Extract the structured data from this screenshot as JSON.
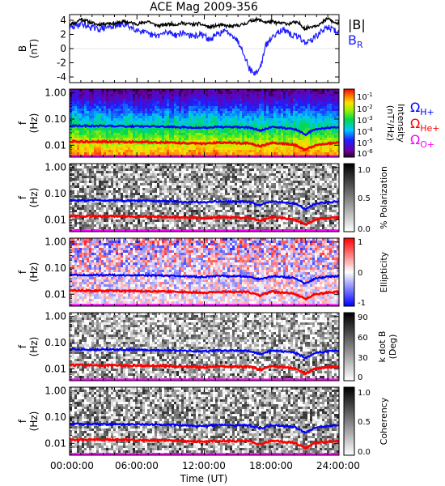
{
  "title": "ACE Mag 2009-356",
  "colors": {
    "total_field": "#000000",
    "radial_field": "#1a1aff",
    "h_plus": "#0000ff",
    "he_plus": "#ff0000",
    "o_plus": "#ff00ff"
  },
  "x_axis": {
    "label": "Time (UT)",
    "ticks": [
      "00:00:00",
      "06:00:00",
      "12:00:00",
      "18:00:00",
      "24:00:00"
    ],
    "tick_hours": [
      0,
      6,
      12,
      18,
      24
    ],
    "range_hours": [
      0,
      24
    ]
  },
  "field_panel": {
    "ylabel": "B",
    "yunit": "(nT)",
    "ylim": [
      -4.8,
      4.8
    ],
    "yticks": [
      "4",
      "2",
      "0",
      "-2",
      "-4"
    ],
    "ytick_values": [
      4,
      2,
      0,
      -2,
      -4
    ],
    "legend": {
      "total": "|B|",
      "radial_main": "B",
      "radial_sub": "R"
    }
  },
  "spectral_panels": {
    "ylabel": "f",
    "yunit": "(Hz)",
    "ylim": [
      0.0035,
      1.4
    ],
    "yticks": [
      "1.00",
      "0.10",
      "0.01"
    ],
    "ytick_values": [
      1.0,
      0.1,
      0.01
    ],
    "scale": "log"
  },
  "gyro_legend": [
    {
      "main": "Ω",
      "sub": "H+",
      "color": "#0000ff"
    },
    {
      "main": "Ω",
      "sub": "He+",
      "color": "#ff0000"
    },
    {
      "main": "Ω",
      "sub": "O+",
      "color": "#ff00ff"
    }
  ],
  "colorbars": {
    "intensity": {
      "label_main": "Intensity",
      "label_unit": "(nT²/Hz)",
      "ticks": [
        {
          "base": "10",
          "exp": "-1"
        },
        {
          "base": "10",
          "exp": "-2"
        },
        {
          "base": "10",
          "exp": "-3"
        },
        {
          "base": "10",
          "exp": "-4"
        },
        {
          "base": "10",
          "exp": "-5"
        },
        {
          "base": "10",
          "exp": "-6"
        }
      ]
    },
    "polarization": {
      "label": "% Polarization",
      "ticks": [
        "1.0",
        "0.5",
        "0.0"
      ]
    },
    "ellipticity": {
      "label": "Ellipticity",
      "ticks": [
        "1",
        "0",
        "-1"
      ]
    },
    "kdotb": {
      "label_main": "k dot B",
      "label_unit": "(Deg)",
      "ticks": [
        "90",
        "60",
        "30",
        "0"
      ]
    },
    "coherency": {
      "label": "Coherency",
      "ticks": [
        "1.0",
        "0.5",
        "0.0"
      ]
    }
  },
  "chart_data": [
    {
      "type": "line",
      "title": "ACE Mag 2009-356",
      "xlabel": "Time (UT)",
      "ylabel": "B (nT)",
      "x_unit": "hours UT",
      "xlim": [
        0,
        24
      ],
      "ylim": [
        -4.8,
        4.8
      ],
      "series": [
        {
          "name": "|B|",
          "x": [
            0,
            0.5,
            1,
            1.5,
            2,
            2.5,
            3,
            3.5,
            4,
            4.5,
            5,
            5.5,
            6,
            6.5,
            7,
            7.5,
            8,
            8.5,
            9,
            9.5,
            10,
            10.5,
            11,
            11.5,
            12,
            12.5,
            13,
            13.5,
            14,
            14.5,
            15,
            15.5,
            16,
            16.5,
            17,
            17.5,
            18,
            18.5,
            19,
            19.5,
            20,
            20.5,
            21,
            21.5,
            22,
            22.5,
            23,
            23.5,
            24
          ],
          "y": [
            3.5,
            3.6,
            4.2,
            3.9,
            3.6,
            3.4,
            3.5,
            3.6,
            3.5,
            3.7,
            3.8,
            3.6,
            3.5,
            3.6,
            3.9,
            3.4,
            3.2,
            3.4,
            3.5,
            3.4,
            3.6,
            3.5,
            3.4,
            3.5,
            3.3,
            3.0,
            3.2,
            3.3,
            3.2,
            3.1,
            3.3,
            3.4,
            3.8,
            4.1,
            4.0,
            3.7,
            3.8,
            3.6,
            3.6,
            3.5,
            3.7,
            3.5,
            2.8,
            3.1,
            3.3,
            3.6,
            4.3,
            3.7,
            3.5
          ]
        },
        {
          "name": "B R",
          "x": [
            0,
            0.5,
            1,
            1.5,
            2,
            2.5,
            3,
            3.5,
            4,
            4.5,
            5,
            5.5,
            6,
            6.5,
            7,
            7.5,
            8,
            8.5,
            9,
            9.5,
            10,
            10.5,
            11,
            11.5,
            12,
            12.5,
            13,
            13.5,
            14,
            14.5,
            15,
            15.5,
            16,
            16.5,
            17,
            17.5,
            18,
            18.5,
            19,
            19.5,
            20,
            20.5,
            21,
            21.5,
            22,
            22.5,
            23,
            23.5,
            24
          ],
          "y": [
            2.9,
            3.1,
            3.6,
            3.2,
            3.0,
            2.7,
            2.9,
            3.1,
            3.2,
            3.3,
            3.4,
            3.0,
            2.7,
            2.4,
            2.0,
            1.8,
            1.9,
            2.2,
            2.3,
            1.9,
            2.2,
            2.1,
            1.6,
            2.0,
            1.8,
            1.2,
            1.8,
            2.3,
            2.4,
            2.0,
            1.0,
            -0.5,
            -2.8,
            -3.6,
            -2.6,
            0.5,
            1.5,
            2.4,
            2.6,
            2.1,
            1.8,
            1.6,
            0.8,
            1.2,
            1.8,
            2.5,
            3.1,
            2.6,
            2.3
          ]
        }
      ]
    },
    {
      "type": "heatmap",
      "title": "Intensity",
      "ylabel": "f (Hz)",
      "xlim": [
        0,
        24
      ],
      "ylim": [
        0.0035,
        1.4
      ],
      "colorbar_range": [
        1e-06,
        0.1
      ],
      "overlays": [
        {
          "name": "Ω H+",
          "x": [
            0,
            4,
            8,
            12,
            13,
            16,
            17,
            18,
            20,
            21,
            22,
            24
          ],
          "y": [
            0.055,
            0.054,
            0.052,
            0.046,
            0.05,
            0.048,
            0.036,
            0.05,
            0.042,
            0.025,
            0.042,
            0.05
          ]
        },
        {
          "name": "Ω He+",
          "x": [
            0,
            4,
            8,
            12,
            13,
            16,
            17,
            18,
            20,
            21,
            22,
            24
          ],
          "y": [
            0.0138,
            0.0135,
            0.013,
            0.0115,
            0.0125,
            0.012,
            0.009,
            0.0125,
            0.0105,
            0.0063,
            0.0105,
            0.0125
          ]
        },
        {
          "name": "Ω O+",
          "x": [
            0,
            4,
            8,
            12,
            13,
            16,
            17,
            18,
            20,
            21,
            22,
            24
          ],
          "y": [
            0.0035,
            0.0034,
            0.0033,
            0.0029,
            0.0031,
            0.003,
            0.0023,
            0.0031,
            0.0026,
            0.0016,
            0.0026,
            0.0031
          ]
        }
      ]
    },
    {
      "type": "heatmap",
      "title": "% Polarization",
      "ylabel": "f (Hz)",
      "xlim": [
        0,
        24
      ],
      "ylim": [
        0.0035,
        1.4
      ],
      "colorbar_range": [
        0,
        1
      ]
    },
    {
      "type": "heatmap",
      "title": "Ellipticity",
      "ylabel": "f (Hz)",
      "xlim": [
        0,
        24
      ],
      "ylim": [
        0.0035,
        1.4
      ],
      "colorbar_range": [
        -1,
        1
      ]
    },
    {
      "type": "heatmap",
      "title": "k dot B",
      "ylabel": "f (Hz)",
      "xlim": [
        0,
        24
      ],
      "ylim": [
        0.0035,
        1.4
      ],
      "colorbar_range": [
        0,
        90
      ]
    },
    {
      "type": "heatmap",
      "title": "Coherency",
      "ylabel": "f (Hz)",
      "xlim": [
        0,
        24
      ],
      "ylim": [
        0.0035,
        1.4
      ],
      "colorbar_range": [
        0,
        1
      ]
    }
  ]
}
